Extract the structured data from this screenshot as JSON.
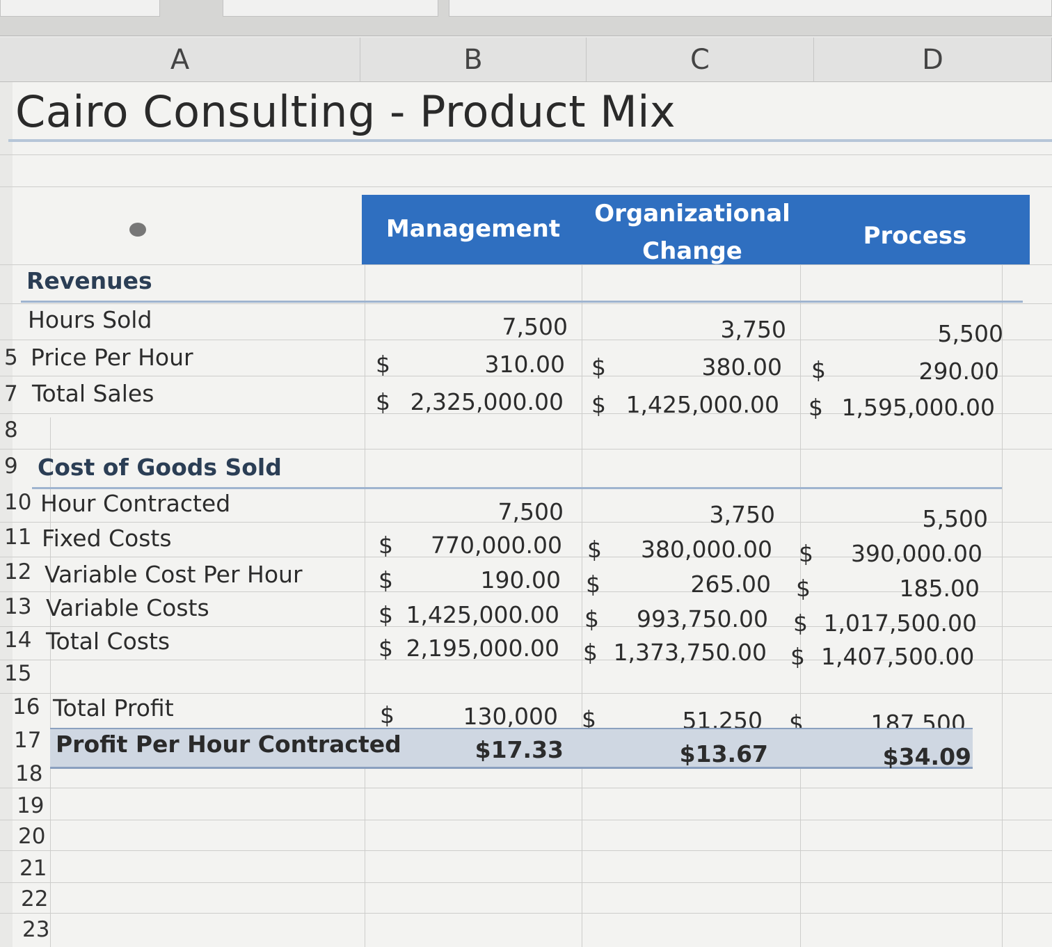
{
  "column_headers": [
    "A",
    "B",
    "C",
    "D"
  ],
  "title": "Cairo Consulting - Product Mix",
  "category_headers": {
    "management": "Management",
    "org_change_line1": "Organizational",
    "org_change_line2": "Change",
    "process": "Process"
  },
  "row_numbers": [
    "5",
    "7",
    "8",
    "9",
    "10",
    "11",
    "12",
    "13",
    "14",
    "15",
    "16",
    "17",
    "18",
    "19",
    "20",
    "21",
    "22",
    "23"
  ],
  "currency_symbol": "$",
  "sections": {
    "revenues": "Revenues",
    "cogs": "Cost of Goods Sold"
  },
  "rows": {
    "hours_sold": {
      "label": "Hours Sold",
      "b": "7,500",
      "c": "3,750",
      "d": "5,500"
    },
    "price_per_hour": {
      "label": "Price Per Hour",
      "b": "310.00",
      "c": "380.00",
      "d": "290.00"
    },
    "total_sales": {
      "label": "Total Sales",
      "b": "2,325,000.00",
      "c": "1,425,000.00",
      "d": "1,595,000.00"
    },
    "hour_contracted": {
      "label": "Hour Contracted",
      "b": "7,500",
      "c": "3,750",
      "d": "5,500"
    },
    "fixed_costs": {
      "label": "Fixed Costs",
      "b": "770,000.00",
      "c": "380,000.00",
      "d": "390,000.00"
    },
    "variable_cost_per_hour": {
      "label": "Variable Cost Per Hour",
      "b": "190.00",
      "c": "265.00",
      "d": "185.00"
    },
    "variable_costs": {
      "label": "Variable Costs",
      "b": "1,425,000.00",
      "c": "993,750.00",
      "d": "1,017,500.00"
    },
    "total_costs": {
      "label": "Total Costs",
      "b": "2,195,000.00",
      "c": "1,373,750.00",
      "d": "1,407,500.00"
    },
    "total_profit": {
      "label": "Total Profit",
      "b": "130,000",
      "c": "51,250",
      "d": "187,500"
    },
    "profit_per_hour": {
      "label": "Profit Per Hour Contracted",
      "b": "$17.33",
      "c": "$13.67",
      "d": "$34.09"
    }
  },
  "colors": {
    "header_band": "#2f6fc0",
    "total_band": "#cfd7e2",
    "section_text": "#2b3e55"
  }
}
